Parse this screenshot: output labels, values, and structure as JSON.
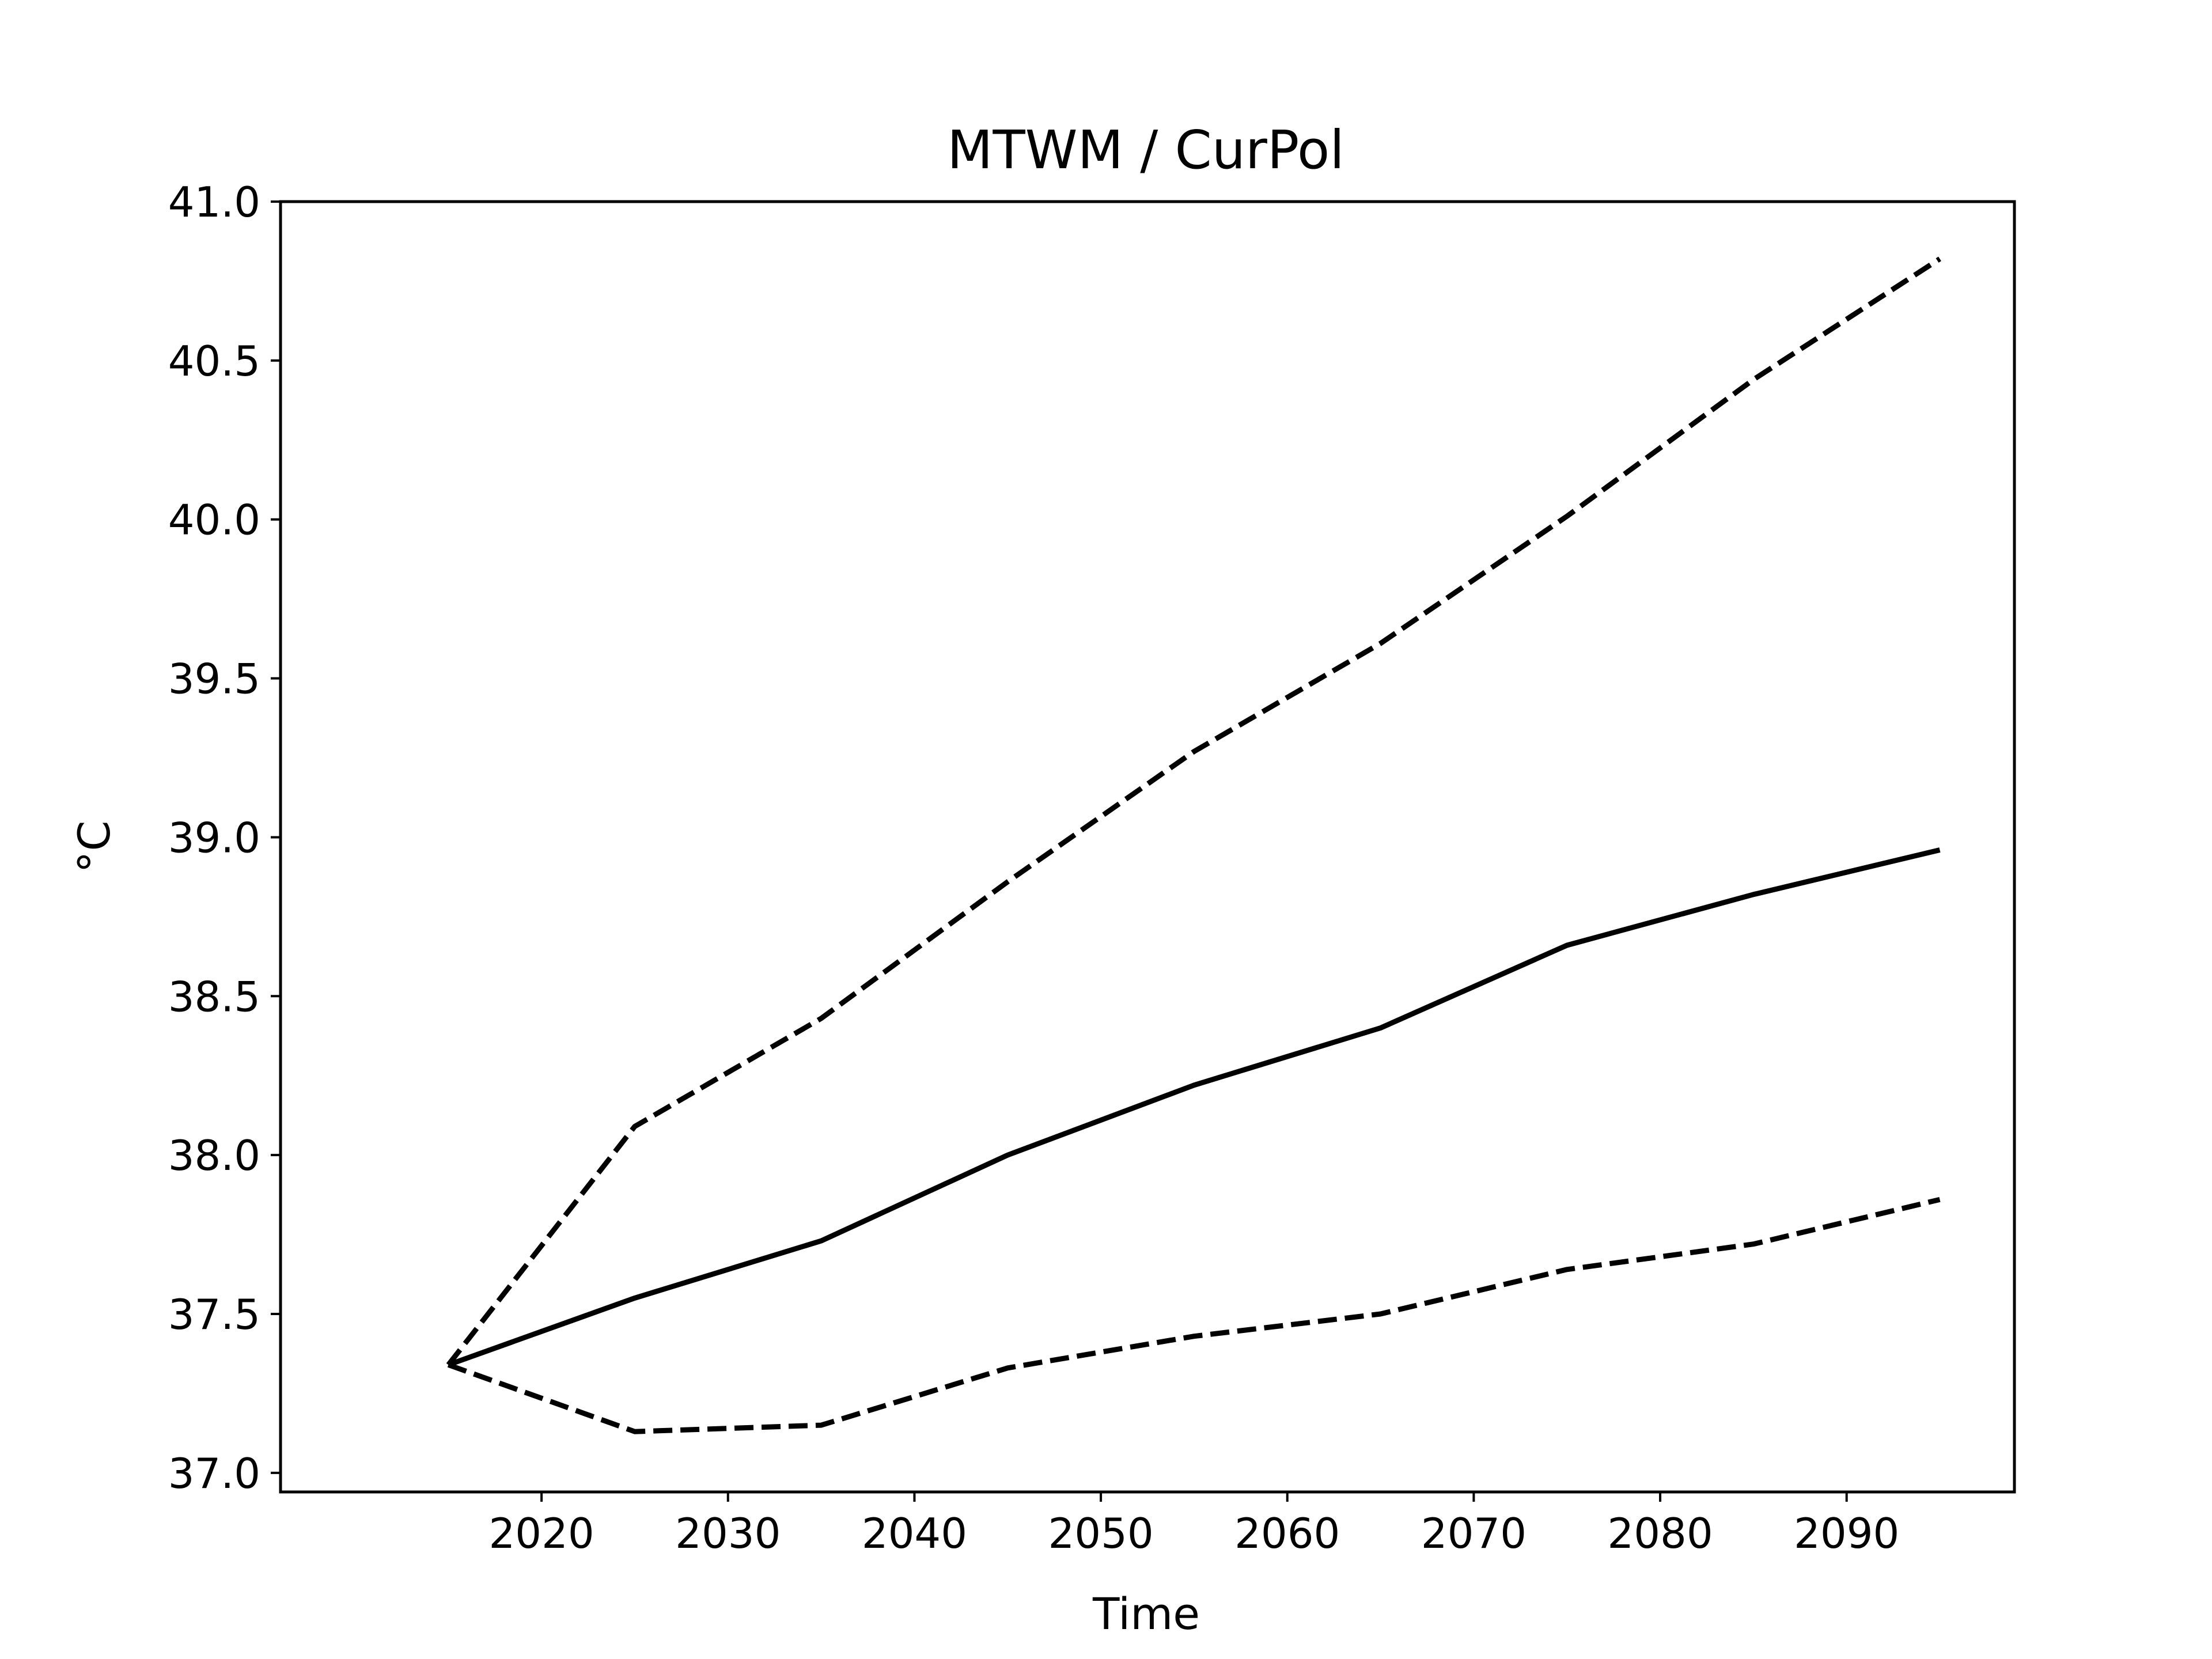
{
  "chart_data": {
    "type": "line",
    "title": "MTWM / CurPol",
    "xlabel": "Time",
    "ylabel": "°C",
    "x": [
      2015,
      2025,
      2035,
      2045,
      2055,
      2065,
      2075,
      2085,
      2095
    ],
    "xlim": [
      2006,
      2099
    ],
    "ylim": [
      36.94,
      41.0
    ],
    "xticks": [
      2020,
      2030,
      2040,
      2050,
      2060,
      2070,
      2080,
      2090
    ],
    "xtick_labels": [
      "2020",
      "2030",
      "2040",
      "2050",
      "2060",
      "2070",
      "2080",
      "2090"
    ],
    "yticks": [
      37.0,
      37.5,
      38.0,
      38.5,
      39.0,
      39.5,
      40.0,
      40.5,
      41.0
    ],
    "ytick_labels": [
      "37.0",
      "37.5",
      "38.0",
      "38.5",
      "39.0",
      "39.5",
      "40.0",
      "40.5",
      "41.0"
    ],
    "grid": false,
    "series": [
      {
        "style": "solid",
        "color": "#000000",
        "values": [
          37.34,
          37.55,
          37.73,
          38.0,
          38.22,
          38.4,
          38.66,
          38.82,
          38.96
        ]
      },
      {
        "style": "dashed",
        "color": "#000000",
        "values": [
          37.34,
          38.09,
          38.43,
          38.86,
          39.27,
          39.61,
          40.01,
          40.44,
          40.82
        ]
      },
      {
        "style": "dashed",
        "color": "#000000",
        "values": [
          37.34,
          37.13,
          37.15,
          37.33,
          37.43,
          37.5,
          37.64,
          37.72,
          37.86
        ]
      }
    ]
  }
}
